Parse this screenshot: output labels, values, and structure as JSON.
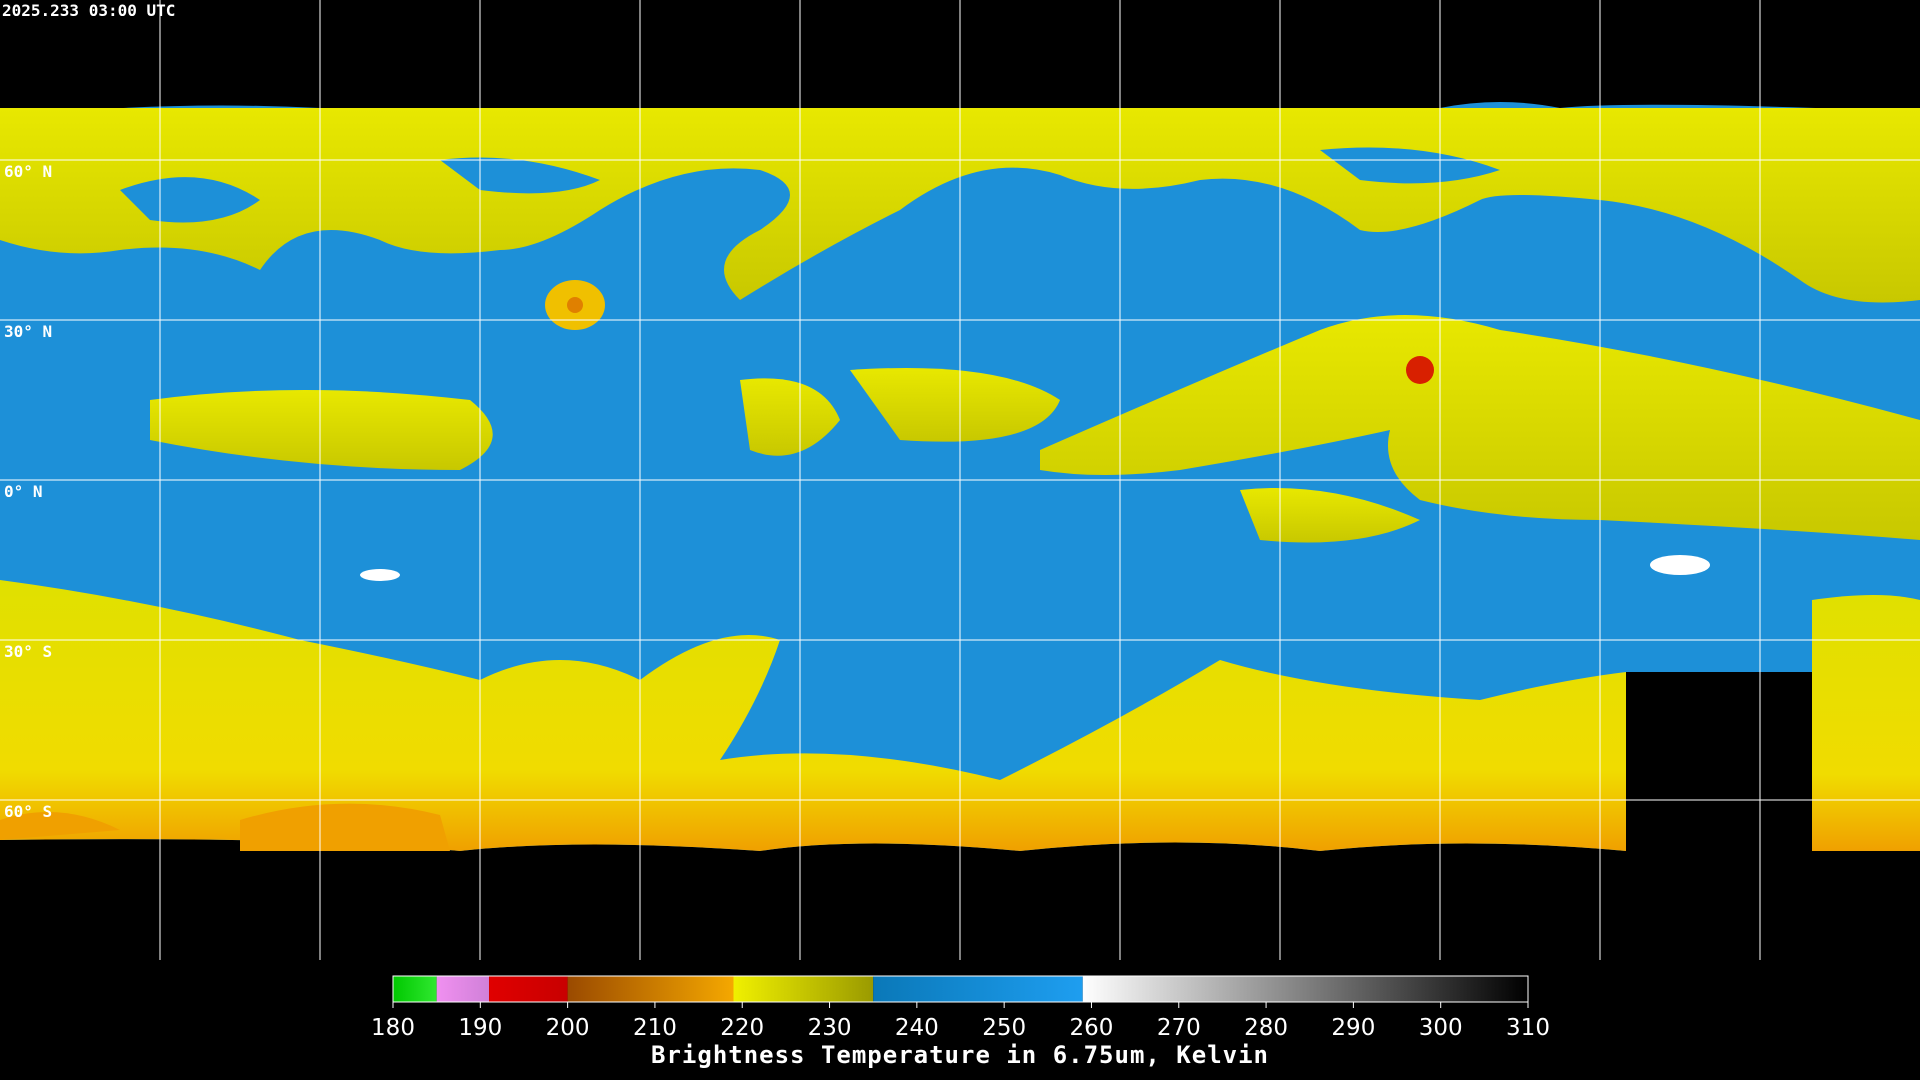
{
  "header": {
    "timestamp": "2025.233 03:00 UTC"
  },
  "map": {
    "latitudes": [
      {
        "value": 60,
        "label": "60° N"
      },
      {
        "value": 30,
        "label": "30° N"
      },
      {
        "value": 0,
        "label": "0° N"
      },
      {
        "value": -30,
        "label": "30° S"
      },
      {
        "value": -60,
        "label": "60° S"
      }
    ]
  },
  "colorbar": {
    "title": "Brightness Temperature in 6.75um, Kelvin",
    "range": [
      180,
      310
    ],
    "ticks": [
      180,
      190,
      200,
      210,
      220,
      230,
      240,
      250,
      260,
      270,
      280,
      290,
      300,
      310
    ],
    "segments": [
      {
        "from": 180,
        "to": 185,
        "colors": [
          "#00c800",
          "#30e830"
        ]
      },
      {
        "from": 185,
        "to": 191,
        "colors": [
          "#f090f0",
          "#d080d8"
        ]
      },
      {
        "from": 191,
        "to": 200,
        "colors": [
          "#e00000",
          "#c80000"
        ]
      },
      {
        "from": 200,
        "to": 219,
        "colors": [
          "#9a4a00",
          "#f5a800"
        ]
      },
      {
        "from": 219,
        "to": 235,
        "colors": [
          "#f0f000",
          "#9a9a00"
        ]
      },
      {
        "from": 235,
        "to": 259,
        "colors": [
          "#0a78b8",
          "#1e9ef0"
        ]
      },
      {
        "from": 259,
        "to": 310,
        "colors": [
          "#ffffff",
          "#000000"
        ]
      }
    ]
  }
}
